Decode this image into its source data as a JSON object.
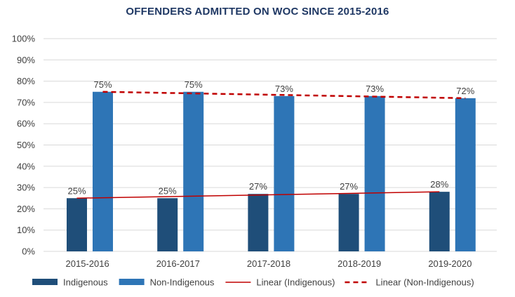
{
  "chart_data": {
    "type": "bar",
    "title": "OFFENDERS ADMITTED ON WOC SINCE 2015-2016",
    "categories": [
      "2015-2016",
      "2016-2017",
      "2017-2018",
      "2018-2019",
      "2019-2020"
    ],
    "series": [
      {
        "name": "Indigenous",
        "color": "#1f4e79",
        "values": [
          25,
          25,
          27,
          27,
          28
        ],
        "labels": [
          "25%",
          "25%",
          "27%",
          "27%",
          "28%"
        ]
      },
      {
        "name": "Non-Indigenous",
        "color": "#2e75b6",
        "values": [
          75,
          75,
          73,
          73,
          72
        ],
        "labels": [
          "75%",
          "75%",
          "73%",
          "73%",
          "72%"
        ]
      }
    ],
    "trendlines": [
      {
        "name": "Linear (Indigenous)",
        "series": "Indigenous",
        "style": "solid",
        "color": "#c00000",
        "start": 25,
        "end": 28
      },
      {
        "name": "Linear (Non-Indigenous)",
        "series": "Non-Indigenous",
        "style": "dashed",
        "color": "#c00000",
        "start": 75,
        "end": 72
      }
    ],
    "ylim": [
      0,
      100
    ],
    "yticks": [
      0,
      10,
      20,
      30,
      40,
      50,
      60,
      70,
      80,
      90,
      100
    ],
    "ytick_labels": [
      "0%",
      "10%",
      "20%",
      "30%",
      "40%",
      "50%",
      "60%",
      "70%",
      "80%",
      "90%",
      "100%"
    ],
    "grid": true,
    "legend_position": "bottom",
    "xlabel": "",
    "ylabel": ""
  }
}
